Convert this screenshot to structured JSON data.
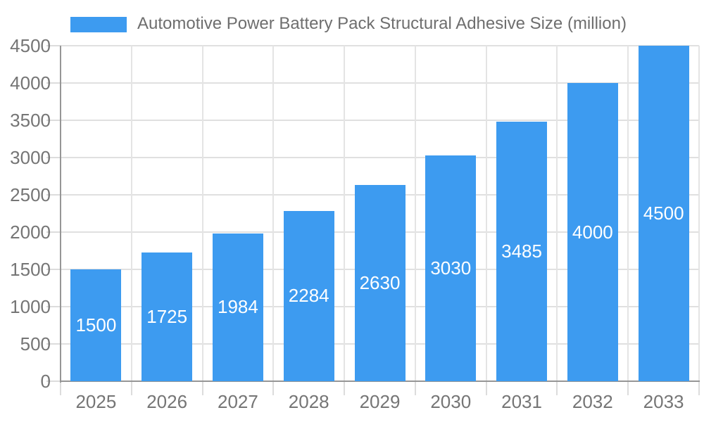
{
  "chart_data": {
    "type": "bar",
    "title": "Automotive Power Battery Pack Structural Adhesive Size (million)",
    "categories": [
      "2025",
      "2026",
      "2027",
      "2028",
      "2029",
      "2030",
      "2031",
      "2032",
      "2033"
    ],
    "values": [
      1500,
      1725,
      1984,
      2284,
      2630,
      3030,
      3485,
      4000,
      4500
    ],
    "ylim": [
      0,
      4500
    ],
    "ytick_step": 500,
    "ytick_labels": [
      "0",
      "500",
      "1000",
      "1500",
      "2000",
      "2500",
      "3000",
      "3500",
      "4000",
      "4500"
    ],
    "bar_labels_shown": true,
    "grid": true,
    "legend_position": "top-left",
    "colors": {
      "bar": "#3D9BF0",
      "bar_label_text": "#ffffff",
      "grid_h": "#e0e0e0",
      "grid_v": "#e4e4e4",
      "tick": "#dcdcdc",
      "axis": "#969696",
      "tick_label_text": "#757575",
      "title_text": "#6e6e6e",
      "background": "#ffffff"
    }
  }
}
